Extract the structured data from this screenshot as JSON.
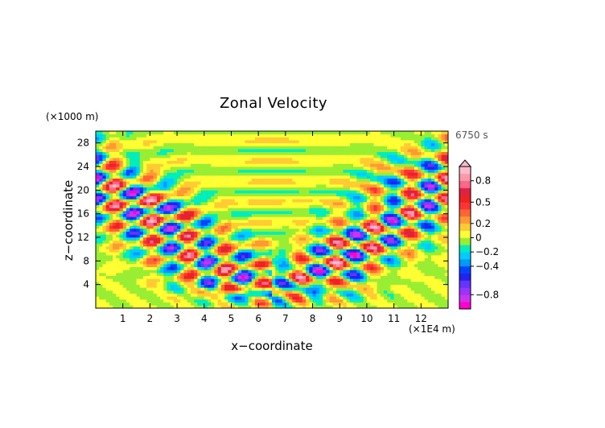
{
  "chart_data": {
    "type": "heatmap",
    "title": "Zonal Velocity",
    "xlabel": "x−coordinate",
    "ylabel": "z−coordinate",
    "x_unit": "(×1E4 m)",
    "y_unit": "(×1000 m)",
    "time_label": "6750 s",
    "xlim": [
      0,
      13
    ],
    "ylim": [
      0,
      30
    ],
    "x_ticks": [
      1,
      2,
      3,
      4,
      5,
      6,
      7,
      8,
      9,
      10,
      11,
      12
    ],
    "x_tick_labels": [
      "1",
      "2",
      "3",
      "4",
      "5",
      "6",
      "7",
      "8",
      "9",
      "10",
      "11",
      "12"
    ],
    "y_ticks": [
      4,
      8,
      12,
      16,
      20,
      24,
      28
    ],
    "y_tick_labels": [
      "4",
      "8",
      "12",
      "16",
      "20",
      "24",
      "28"
    ],
    "grid": false,
    "colorbar": {
      "levels": [
        -1.0,
        -0.9,
        -0.8,
        -0.7,
        -0.6,
        -0.5,
        -0.4,
        -0.3,
        -0.2,
        -0.1,
        0.0,
        0.1,
        0.2,
        0.3,
        0.4,
        0.5,
        0.6,
        0.7,
        0.8,
        0.9,
        1.0
      ],
      "colors": [
        "#ff00cc",
        "#cc33ee",
        "#9933ff",
        "#6633ff",
        "#2222ee",
        "#0044ff",
        "#0099ff",
        "#00ccff",
        "#00eebb",
        "#99ee33",
        "#ffff33",
        "#ffcc33",
        "#ff9933",
        "#ff6633",
        "#ff3333",
        "#ee2222",
        "#dd2244",
        "#ff6688",
        "#ff99aa",
        "#ffbbcc"
      ],
      "tick_values": [
        0.8,
        0.5,
        0.2,
        0,
        -0.2,
        -0.4,
        -0.8
      ],
      "tick_labels": [
        "0.8",
        "0.5",
        "0.2",
        "0",
        "−0.2",
        "−0.4",
        "−0.8"
      ],
      "extend": "max"
    },
    "description_of_field": {
      "center_x": 6.5,
      "wave_beams": "two symmetric wave beams radiating upward from x≈6.5 toward upper-left and upper-right, amplitude up to about ±0.9",
      "value_range": [
        -0.9,
        0.9
      ]
    }
  }
}
